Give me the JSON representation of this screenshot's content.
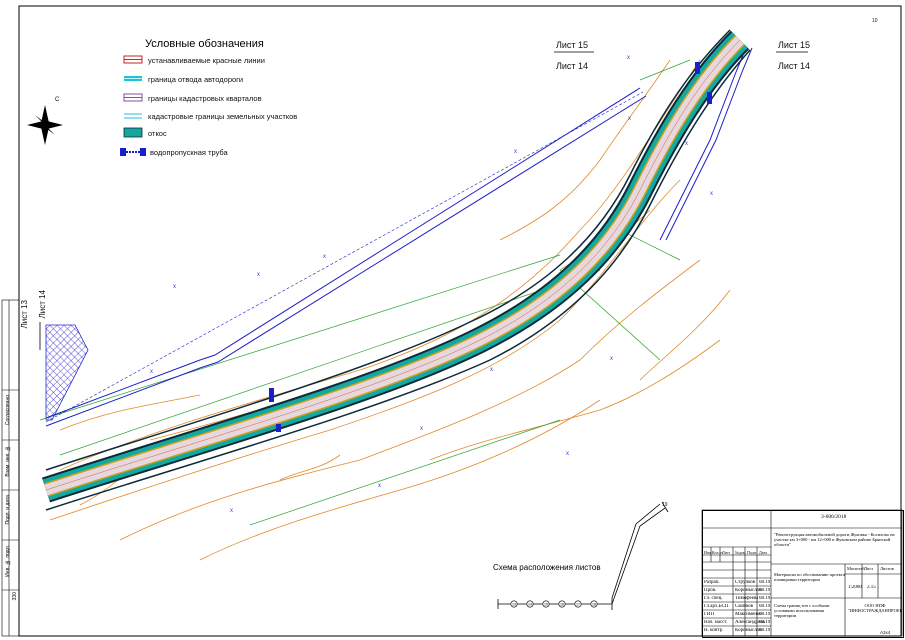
{
  "legend": {
    "title": "Условные обозначения",
    "items": [
      {
        "label": "устанавливаемые красные линии",
        "color": "#d22020"
      },
      {
        "label": "граница отвода автодороги",
        "color": "#19c6d8"
      },
      {
        "label": "границы кадастровых кварталов",
        "color": "#8a4fa0"
      },
      {
        "label": "кадастровые границы земельных участков",
        "color": "#19c6d8"
      },
      {
        "label": "откос",
        "color": "#16a6a0"
      },
      {
        "label": "водопропускная труба",
        "color": "#1a20c8"
      }
    ]
  },
  "sheets": {
    "top_left_upper": "Лист 15",
    "top_left_lower": "Лист 14",
    "top_right_upper": "Лист 15",
    "top_right_lower": "Лист 14",
    "left_upper": "Лист 13",
    "left_lower": "Лист 14"
  },
  "corner_mark": "10",
  "scheme": {
    "title": "Схема расположения листов",
    "ticks": [
      "13",
      "14",
      "15",
      "16",
      "17",
      "18"
    ],
    "end_label": "19"
  },
  "title_block": {
    "code": "3-606/2018",
    "project": "\"Реконструкция автомобильной дороги Жуковка - Косилово на участке км 3+000 - км 12+000 в Жуковском районе Брянской области\"",
    "header": [
      "Изм.",
      "Кол.уч",
      "Лист",
      "№док.",
      "Подп.",
      "Дата"
    ],
    "roles": [
      {
        "role": "Разраб.",
        "name": "Стручков",
        "date": "08.19"
      },
      {
        "role": "Пров.",
        "name": "Коромыслов",
        "date": "08.19"
      },
      {
        "role": "Гл. спец.",
        "name": "Тимофеева",
        "date": "08.19"
      },
      {
        "role": "Гл.арх.БСП",
        "name": "Смачков",
        "date": "08.19"
      },
      {
        "role": "ГИП",
        "name": "Максименко",
        "date": "08.19"
      },
      {
        "role": "Нач. масст.",
        "name": "Александрова",
        "date": "08.19"
      },
      {
        "role": "Н. контр.",
        "name": "Коромыслов",
        "date": "08.19"
      }
    ],
    "doc_title": "Материалы по обоснованию проекта планировки территории",
    "col_scale": "Масштаб",
    "col_sheet": "Лист",
    "col_sheets": "Листов",
    "scale": "1:2000",
    "sheet_no": "2.15",
    "drawing_title": "Схема границ зон с особыми условиями использования территории",
    "org": "ООО НПФ \"ИНФОСТРАЖДАНПРОЕКТ\"",
    "format": "А3х4"
  },
  "stamp": {
    "labels": [
      "Согласовано",
      "Взам. инв. №",
      "Подп. и дата",
      "Инв. № подл."
    ],
    "number": "330"
  },
  "colors": {
    "road_slope": "#14a9a0",
    "road_dark": "#0d2a3a",
    "road_surface": "#e8d8dc",
    "road_edge": "#c9a020",
    "contour": "#e08a2a",
    "green_line": "#2da22d",
    "blue_band": "#1a20c8",
    "hatch": "#2a2ad0"
  }
}
